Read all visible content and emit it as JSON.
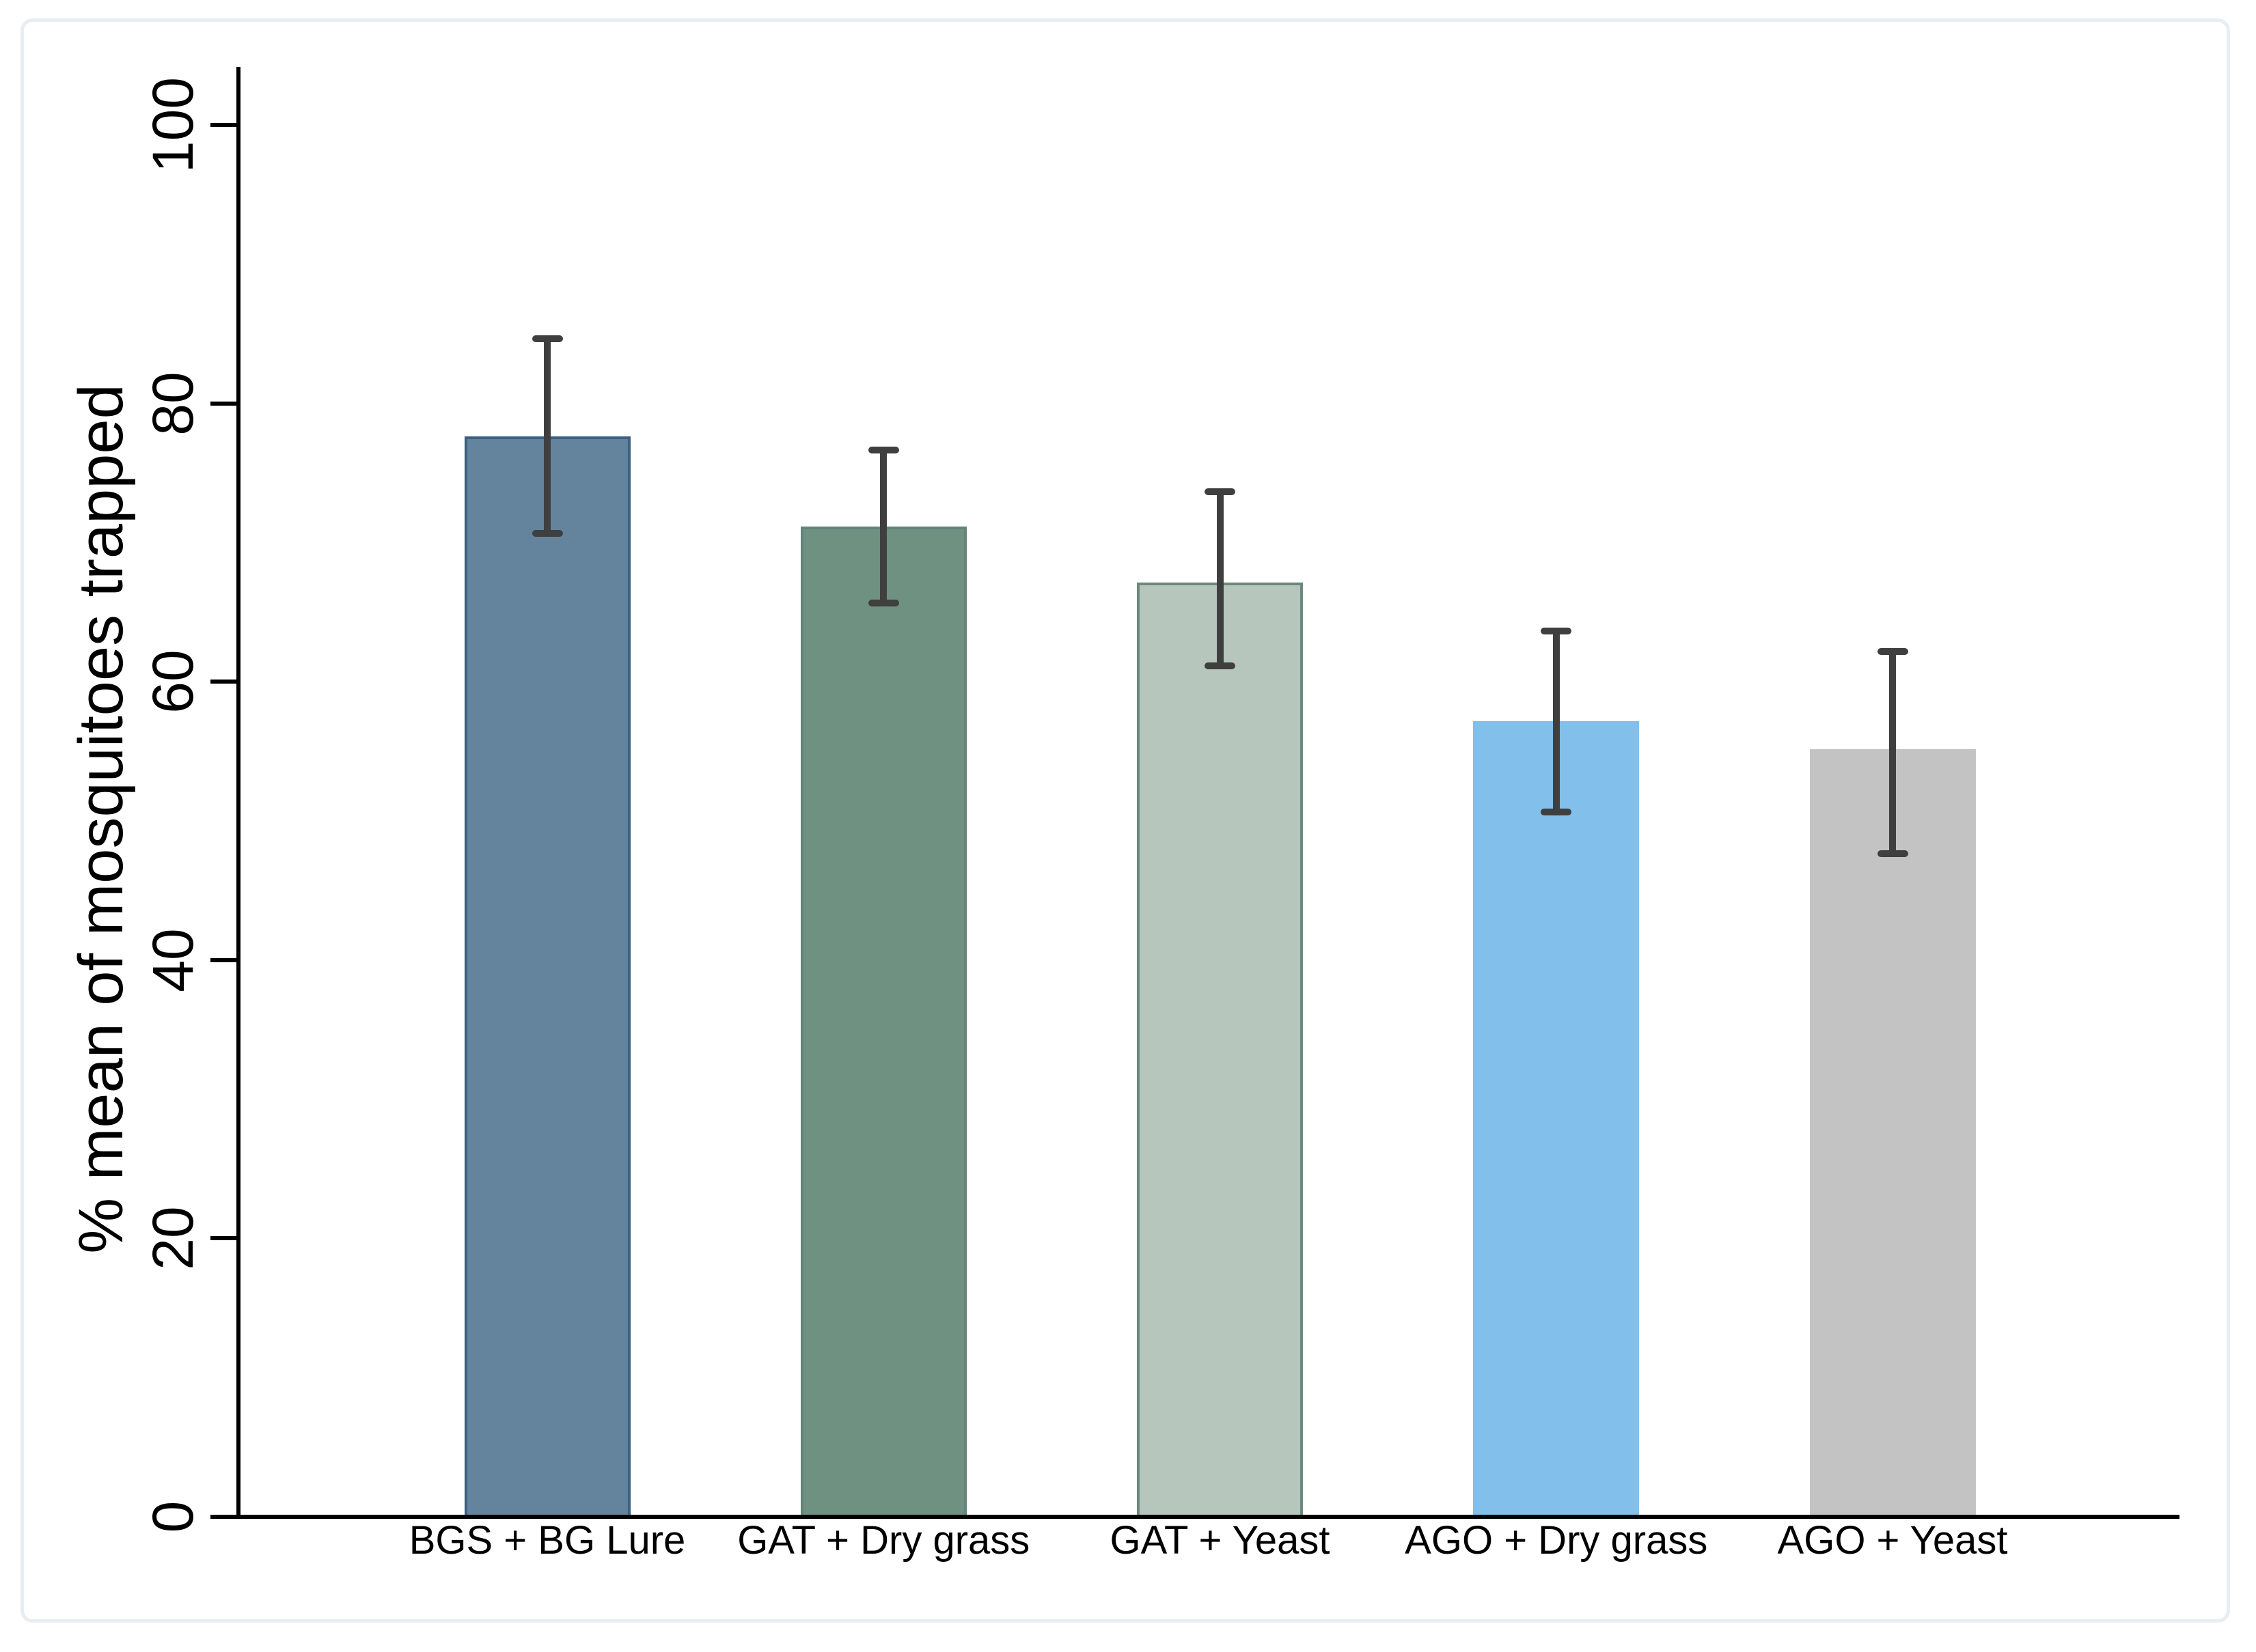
{
  "figure": {
    "background": "#ffffff",
    "border_color": "#e7edf0"
  },
  "chart_data": {
    "type": "bar",
    "title": "",
    "xlabel": "",
    "ylabel": "% mean of mosquitoes trapped",
    "ylim": [
      0,
      100
    ],
    "yticks": [
      "0",
      "20",
      "40",
      "60",
      "80",
      "100"
    ],
    "grid": false,
    "legend_position": "none",
    "categories": [
      "BGS + BG Lure",
      "GAT + Dry grass",
      "GAT + Yeast",
      "AGO + Dry grass",
      "AGO + Yeast"
    ],
    "series": [
      {
        "name": "% mean of mosquitoes trapped",
        "values": [
          77.5,
          71,
          67,
          57,
          55
        ],
        "error_low": [
          70.5,
          65.5,
          61,
          50.5,
          47.5
        ],
        "error_high": [
          84.5,
          76.5,
          73.5,
          63.5,
          62
        ]
      }
    ],
    "bar_fill_colors": [
      "#64839c",
      "#6f9182",
      "#b7c6bd",
      "#82bfea",
      "#c3c3c3"
    ],
    "bar_border_colors": [
      "#3b6080",
      "#62857a",
      "#6c8a7c",
      "#82bfea",
      "#c3c3c3"
    ],
    "error_bar_color": "#3f3f3f",
    "axis_color": "#000000",
    "text_color": "#000000"
  }
}
